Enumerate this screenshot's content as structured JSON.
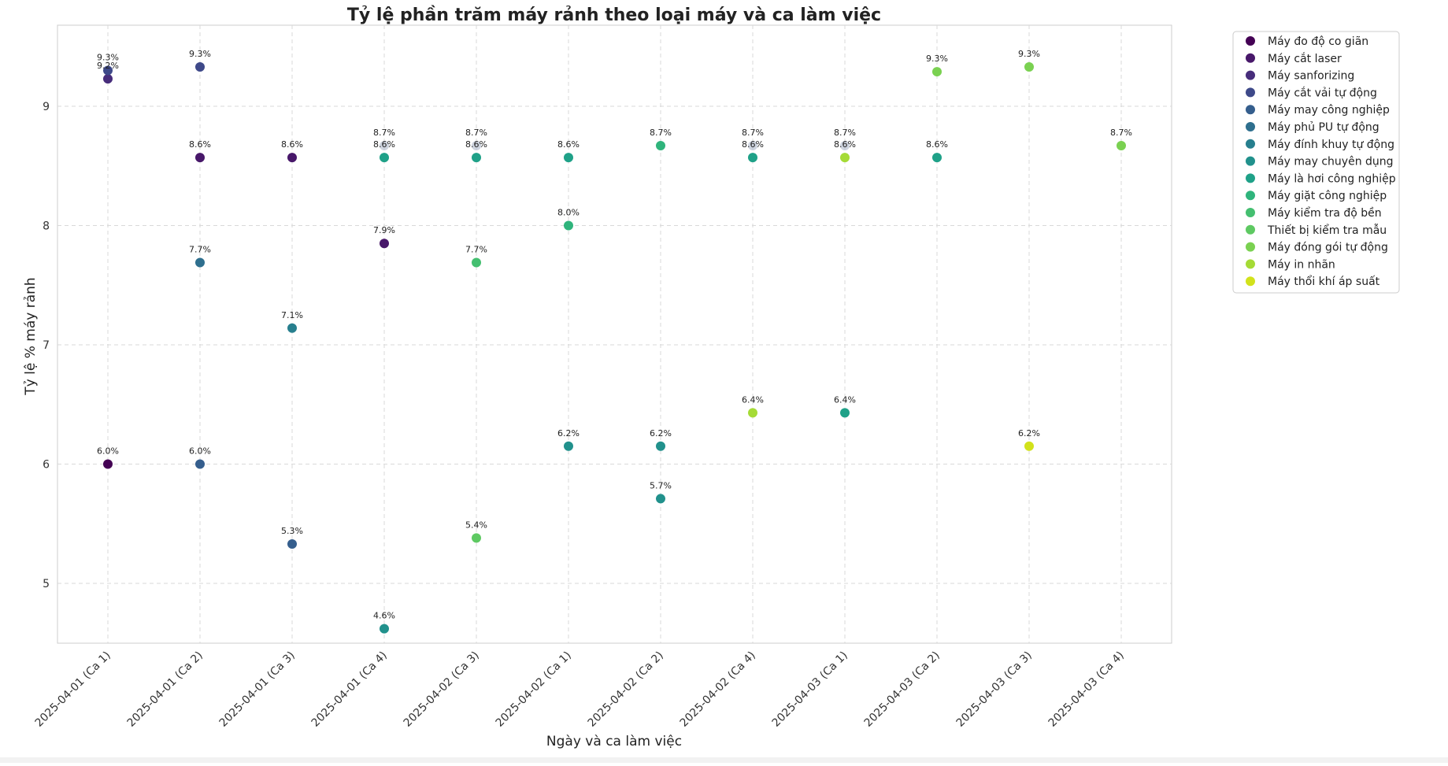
{
  "chart_data": {
    "type": "scatter",
    "title": "Tỷ lệ phần trăm máy rảnh theo loại máy và ca làm việc",
    "xlabel": "Ngày và ca làm việc",
    "ylabel": "Tỷ lệ % máy rảnh",
    "categories": [
      "2025-04-01 (Ca 1)",
      "2025-04-01 (Ca 2)",
      "2025-04-01 (Ca 3)",
      "2025-04-01 (Ca 4)",
      "2025-04-02 (Ca 3)",
      "2025-04-02 (Ca 1)",
      "2025-04-02 (Ca 2)",
      "2025-04-02 (Ca 4)",
      "2025-04-03 (Ca 1)",
      "2025-04-03 (Ca 2)",
      "2025-04-03 (Ca 3)",
      "2025-04-03 (Ca 4)"
    ],
    "yticks": [
      5,
      6,
      7,
      8,
      9
    ],
    "ylim": [
      4.4,
      9.6
    ],
    "grid": true,
    "legend_position": "outside-top-right",
    "series": [
      {
        "name": "Máy đo độ co giãn",
        "color": "#440154",
        "points": [
          {
            "x": "2025-04-01 (Ca 1)",
            "y": 6.0,
            "label": "6.0%"
          }
        ]
      },
      {
        "name": "Máy cắt laser",
        "color": "#48186a",
        "points": [
          {
            "x": "2025-04-01 (Ca 2)",
            "y": 8.57,
            "label": "8.6%"
          },
          {
            "x": "2025-04-01 (Ca 3)",
            "y": 8.57,
            "label": "8.6%"
          },
          {
            "x": "2025-04-01 (Ca 4)",
            "y": 7.85,
            "label": "7.9%"
          }
        ]
      },
      {
        "name": "Máy sanforizing",
        "color": "#472d7b",
        "points": [
          {
            "x": "2025-04-01 (Ca 1)",
            "y": 9.23,
            "label": "9.2%"
          }
        ]
      },
      {
        "name": "Máy cắt vải tự động",
        "color": "#3e4989",
        "points": [
          {
            "x": "2025-04-01 (Ca 1)",
            "y": 9.3,
            "label": "9.3%"
          },
          {
            "x": "2025-04-01 (Ca 2)",
            "y": 9.33,
            "label": "9.3%"
          }
        ]
      },
      {
        "name": "Máy may công nghiệp",
        "color": "#355e8d",
        "points": [
          {
            "x": "2025-04-01 (Ca 2)",
            "y": 6.0,
            "label": "6.0%"
          },
          {
            "x": "2025-04-01 (Ca 3)",
            "y": 5.33,
            "label": "5.3%"
          }
        ]
      },
      {
        "name": "Máy phủ PU tự động",
        "color": "#2e6f8e",
        "points": [
          {
            "x": "2025-04-01 (Ca 2)",
            "y": 7.69,
            "label": "7.7%"
          }
        ]
      },
      {
        "name": "Máy đính khuy tự động",
        "color": "#277f8e",
        "points": [
          {
            "x": "2025-04-01 (Ca 3)",
            "y": 7.14,
            "label": "7.1%"
          }
        ]
      },
      {
        "name": "Máy may chuyên dụng",
        "color": "#21918c",
        "points": [
          {
            "x": "2025-04-01 (Ca 4)",
            "y": 4.62,
            "label": "4.6%"
          },
          {
            "x": "2025-04-02 (Ca 1)",
            "y": 6.15,
            "label": "6.2%"
          },
          {
            "x": "2025-04-02 (Ca 2)",
            "y": 6.15,
            "label": "6.2%"
          },
          {
            "x": "2025-04-02 (Ca 2)",
            "y": 5.71,
            "label": "5.7%"
          }
        ]
      },
      {
        "name": "Máy là hơi công nghiệp",
        "color": "#1fa188",
        "points": [
          {
            "x": "2025-04-01 (Ca 4)",
            "y": 8.57,
            "label": "8.6%"
          },
          {
            "x": "2025-04-02 (Ca 3)",
            "y": 8.57,
            "label": "8.6%"
          },
          {
            "x": "2025-04-02 (Ca 1)",
            "y": 8.57,
            "label": "8.6%"
          },
          {
            "x": "2025-04-02 (Ca 4)",
            "y": 8.57,
            "label": "8.6%"
          },
          {
            "x": "2025-04-03 (Ca 1)",
            "y": 6.43,
            "label": "6.4%"
          },
          {
            "x": "2025-04-03 (Ca 2)",
            "y": 8.57,
            "label": "8.6%"
          }
        ]
      },
      {
        "name": "Máy giặt công nghiệp",
        "color": "#2fb47c",
        "points": [
          {
            "x": "2025-04-02 (Ca 1)",
            "y": 8.0,
            "label": "8.0%"
          },
          {
            "x": "2025-04-02 (Ca 2)",
            "y": 8.67,
            "label": "8.7%"
          }
        ]
      },
      {
        "name": "Máy kiểm tra độ bền",
        "color": "#44bf70",
        "points": [
          {
            "x": "2025-04-02 (Ca 3)",
            "y": 7.69,
            "label": "7.7%"
          }
        ]
      },
      {
        "name": "Thiết bị kiểm tra mẫu",
        "color": "#5ec962",
        "points": [
          {
            "x": "2025-04-02 (Ca 3)",
            "y": 5.38,
            "label": "5.4%"
          }
        ]
      },
      {
        "name": "Máy đóng gói tự động",
        "color": "#7ad151",
        "points": [
          {
            "x": "2025-04-03 (Ca 2)",
            "y": 9.29,
            "label": "9.3%"
          },
          {
            "x": "2025-04-03 (Ca 3)",
            "y": 9.33,
            "label": "9.3%"
          },
          {
            "x": "2025-04-03 (Ca 4)",
            "y": 8.67,
            "label": "8.7%"
          }
        ]
      },
      {
        "name": "Máy in nhãn",
        "color": "#a5db36",
        "points": [
          {
            "x": "2025-04-02 (Ca 4)",
            "y": 6.43,
            "label": "6.4%"
          },
          {
            "x": "2025-04-03 (Ca 1)",
            "y": 8.57,
            "label": "8.6%"
          }
        ]
      },
      {
        "name": "Máy thổi khí áp suất",
        "color": "#d2e21b",
        "points": [
          {
            "x": "2025-04-03 (Ca 3)",
            "y": 6.15,
            "label": "6.2%"
          }
        ]
      }
    ],
    "hidden_labels": [
      {
        "x": "2025-04-01 (Ca 4)",
        "y": 8.67,
        "label": "8.7%"
      },
      {
        "x": "2025-04-02 (Ca 3)",
        "y": 8.67,
        "label": "8.7%"
      },
      {
        "x": "2025-04-02 (Ca 4)",
        "y": 8.67,
        "label": "8.7%"
      },
      {
        "x": "2025-04-03 (Ca 1)",
        "y": 8.67,
        "label": "8.7%"
      }
    ]
  }
}
